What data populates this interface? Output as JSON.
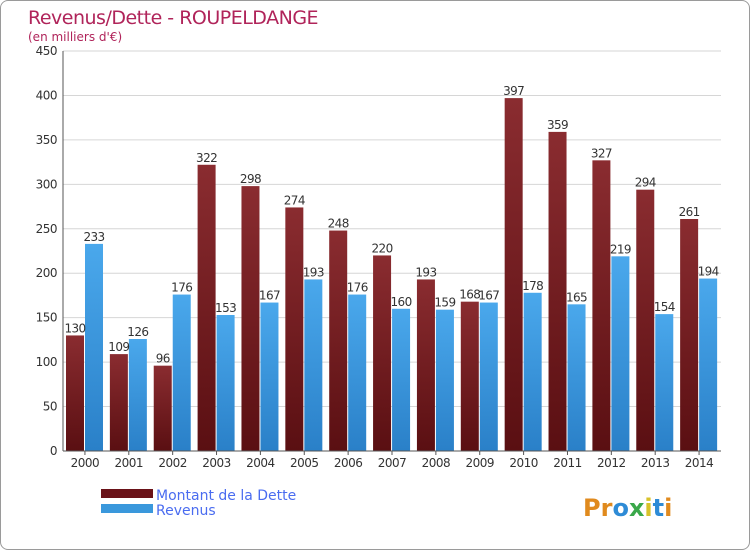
{
  "chart_data": {
    "type": "bar",
    "title": "Revenus/Dette - ROUPELDANGE",
    "subtitle": "(en milliers d'€)",
    "xlabel": "",
    "ylabel": "",
    "ylim": [
      0,
      450
    ],
    "yticks": [
      0,
      50,
      100,
      150,
      200,
      250,
      300,
      350,
      400,
      450
    ],
    "grid": true,
    "legend_position": "bottom-left",
    "categories": [
      "2000",
      "2001",
      "2002",
      "2003",
      "2004",
      "2005",
      "2006",
      "2007",
      "2008",
      "2009",
      "2010",
      "2011",
      "2012",
      "2013",
      "2014"
    ],
    "series": [
      {
        "name": "Montant de la Dette",
        "color": "#7a1f24",
        "values": [
          130,
          109,
          96,
          322,
          298,
          274,
          248,
          220,
          193,
          168,
          397,
          359,
          327,
          294,
          261
        ]
      },
      {
        "name": "Revenus",
        "color": "#3a98dc",
        "values": [
          233,
          126,
          176,
          153,
          167,
          193,
          176,
          160,
          159,
          167,
          178,
          165,
          219,
          154,
          194
        ]
      }
    ]
  },
  "brand": {
    "text": "Proxiti",
    "letters": [
      "P",
      "r",
      "o",
      "x",
      "i",
      "t",
      "i"
    ],
    "colors": [
      "#e08a1e",
      "#e08a1e",
      "#2e8bd6",
      "#3aa84a",
      "#d8c22a",
      "#2e8bd6",
      "#e08a1e"
    ]
  }
}
